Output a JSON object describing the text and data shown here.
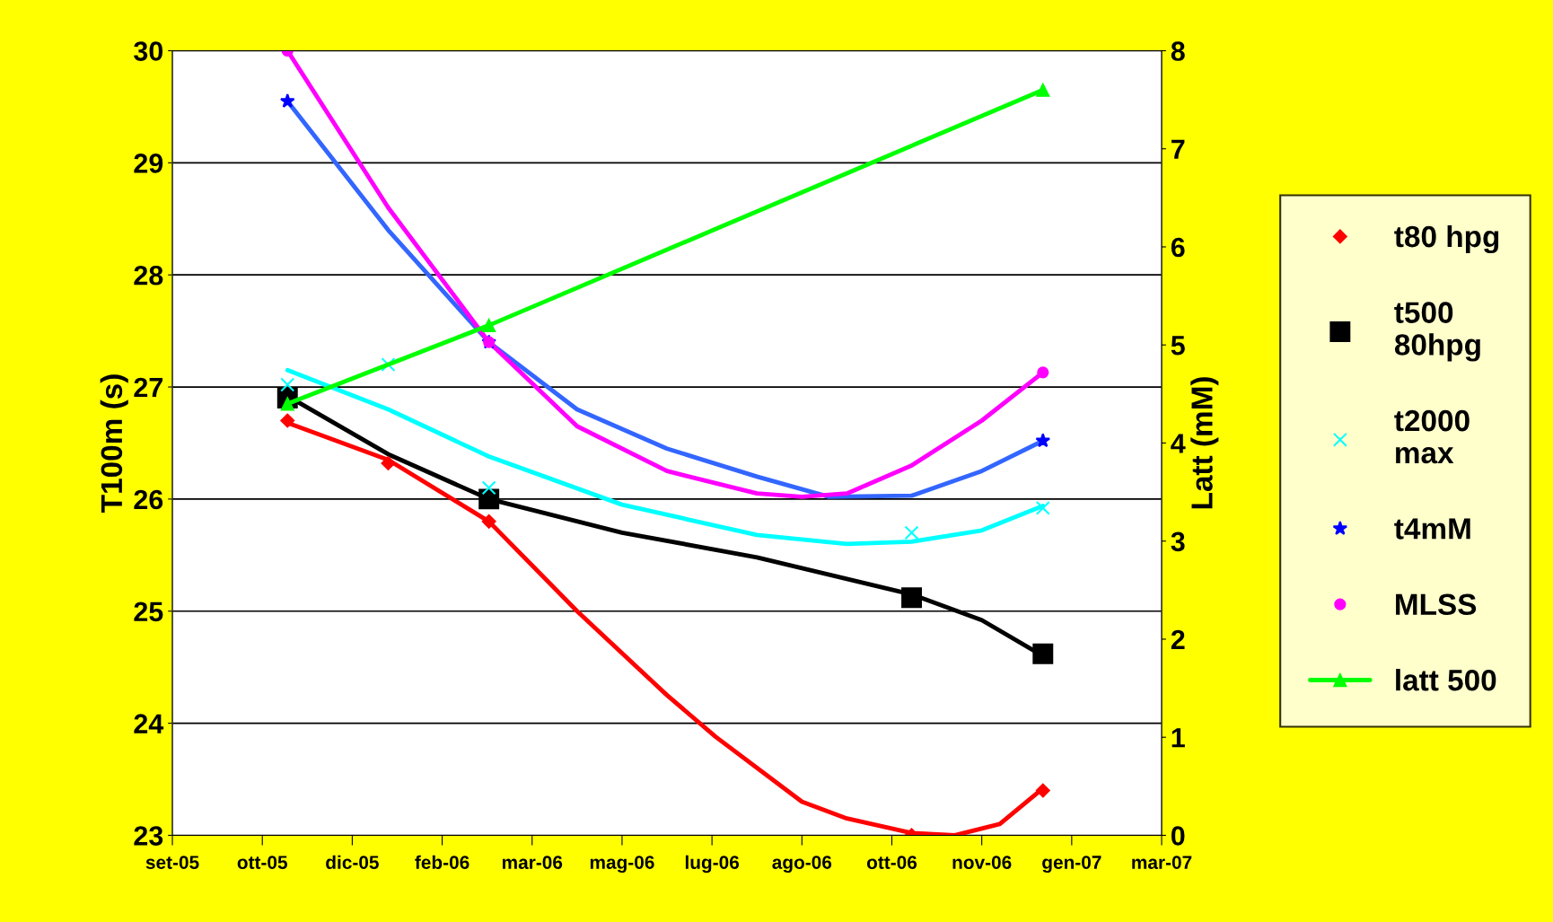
{
  "chart_data": {
    "type": "scatter",
    "ylabel": "T100m (s)",
    "y2label": "Latt (mM)",
    "xlim": [
      "2005-09-04",
      "2007-03-08"
    ],
    "xticks": [
      {
        "value": "2005-09-04",
        "label": "set-05"
      },
      {
        "value": "2005-10-24",
        "label": "ott-05"
      },
      {
        "value": "2005-12-13",
        "label": "dic-05"
      },
      {
        "value": "2006-02-01",
        "label": "feb-06"
      },
      {
        "value": "2006-03-23",
        "label": "mar-06"
      },
      {
        "value": "2006-05-12",
        "label": "mag-06"
      },
      {
        "value": "2006-07-01",
        "label": "lug-06"
      },
      {
        "value": "2006-08-20",
        "label": "ago-06"
      },
      {
        "value": "2006-10-09",
        "label": "ott-06"
      },
      {
        "value": "2006-11-28",
        "label": "nov-06"
      },
      {
        "value": "2007-01-17",
        "label": "gen-07"
      },
      {
        "value": "2007-03-08",
        "label": "mar-07"
      }
    ],
    "ylim": [
      23,
      30
    ],
    "yticks": [
      23,
      24,
      25,
      26,
      27,
      28,
      29,
      30
    ],
    "y2lim": [
      0,
      8
    ],
    "y2ticks": [
      0,
      1,
      2,
      3,
      4,
      5,
      6,
      7,
      8
    ],
    "grid": "y",
    "legend": "right",
    "series": [
      {
        "type": "line",
        "color": "#ff0000",
        "marker": "none",
        "x": [
          "2005-11-07",
          "2006-01-02",
          "2006-02-27",
          "2006-04-17",
          "2006-06-06",
          "2006-07-03",
          "2006-08-20",
          "2006-09-14",
          "2006-10-20",
          "2006-11-13",
          "2006-12-08",
          "2007-01-01"
        ],
        "values": [
          26.68,
          26.35,
          25.8,
          25.0,
          24.25,
          23.88,
          23.3,
          23.15,
          23.02,
          23.0,
          23.1,
          23.42
        ]
      },
      {
        "type": "line",
        "color": "#000000",
        "marker": "none",
        "x": [
          "2005-11-07",
          "2006-01-02",
          "2006-02-27",
          "2006-05-12",
          "2006-07-26",
          "2006-10-20",
          "2006-11-28",
          "2007-01-01"
        ],
        "values": [
          26.92,
          26.4,
          26.0,
          25.7,
          25.48,
          25.15,
          24.92,
          24.6
        ]
      },
      {
        "type": "line",
        "color": "#00ffff",
        "marker": "none",
        "x": [
          "2005-11-07",
          "2006-01-02",
          "2006-02-27",
          "2006-05-12",
          "2006-07-26",
          "2006-09-14",
          "2006-10-20",
          "2006-11-28",
          "2007-01-01"
        ],
        "values": [
          27.15,
          26.8,
          26.38,
          25.95,
          25.68,
          25.6,
          25.62,
          25.72,
          25.94
        ]
      },
      {
        "type": "line",
        "color": "#3366ff",
        "marker": "none",
        "x": [
          "2005-11-07",
          "2006-01-02",
          "2006-02-27",
          "2006-04-17",
          "2006-06-06",
          "2006-07-26",
          "2006-09-04",
          "2006-10-20",
          "2006-11-28",
          "2007-01-01"
        ],
        "values": [
          29.55,
          28.4,
          27.4,
          26.8,
          26.45,
          26.2,
          26.02,
          26.03,
          26.25,
          26.52
        ]
      },
      {
        "type": "line",
        "color": "#ff00ff",
        "marker": "none",
        "x": [
          "2005-11-07",
          "2006-01-02",
          "2006-02-27",
          "2006-04-17",
          "2006-06-06",
          "2006-07-26",
          "2006-08-20",
          "2006-09-14",
          "2006-10-20",
          "2006-11-28",
          "2007-01-01"
        ],
        "values": [
          30.0,
          28.6,
          27.4,
          26.65,
          26.25,
          26.05,
          26.02,
          26.05,
          26.3,
          26.7,
          27.13
        ]
      },
      {
        "name": "t80 hpg",
        "color": "#ff0000",
        "marker": "diamond",
        "x": [
          "2005-11-07",
          "2006-01-02",
          "2006-02-27",
          "2006-10-20",
          "2007-01-01"
        ],
        "values": [
          26.7,
          26.32,
          25.8,
          23.0,
          23.4
        ]
      },
      {
        "name": "t500\n80hpg",
        "color": "#000000",
        "marker": "square",
        "x": [
          "2005-11-07",
          "2006-02-27",
          "2006-10-20",
          "2007-01-01"
        ],
        "values": [
          26.9,
          26.0,
          25.12,
          24.62
        ]
      },
      {
        "name": "t2000\nmax",
        "color": "#00ffff",
        "marker": "cross",
        "x": [
          "2005-11-07",
          "2006-01-02",
          "2006-02-27",
          "2006-10-20",
          "2007-01-01"
        ],
        "values": [
          27.02,
          27.2,
          26.1,
          25.7,
          25.92
        ]
      },
      {
        "name": "t4mM",
        "color": "#0000ff",
        "marker": "star",
        "x": [
          "2005-11-07",
          "2006-02-27",
          "2007-01-01"
        ],
        "values": [
          29.55,
          27.4,
          26.52
        ]
      },
      {
        "name": "MLSS",
        "color": "#ff00ff",
        "marker": "circle",
        "x": [
          "2005-11-07",
          "2006-02-27",
          "2007-01-01"
        ],
        "values": [
          30.0,
          27.4,
          27.13
        ]
      },
      {
        "name": "latt 500",
        "type": "line",
        "axis": "y2",
        "color": "#00ff00",
        "marker": "triangle",
        "x": [
          "2005-11-07",
          "2006-02-27",
          "2007-01-01"
        ],
        "values": [
          4.4,
          5.2,
          7.6
        ]
      }
    ]
  }
}
